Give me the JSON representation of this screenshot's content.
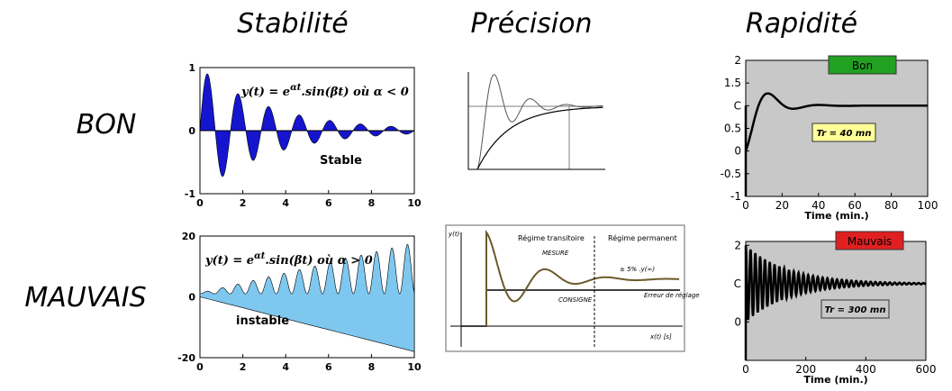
{
  "columns": [
    "Stabilité",
    "Précision",
    "Rapidité"
  ],
  "rows": [
    "BON",
    "MAUVAIS"
  ],
  "panels": {
    "stable": {
      "formula_lhs": "y(t) = e",
      "formula_exp": "αt",
      "formula_rhs": ".sin(βt)  où  α < 0",
      "label": "Stable",
      "xlim": [
        0,
        10
      ],
      "ylim": [
        -1,
        1
      ],
      "xticks": [
        0,
        2,
        4,
        6,
        8,
        10
      ],
      "yticks": [
        -1,
        0,
        1
      ]
    },
    "unstable": {
      "formula_lhs": "y(t) = e",
      "formula_exp": "αt",
      "formula_rhs": ".sin(βt)  où  α > 0",
      "label": "instable",
      "xlim": [
        0,
        10
      ],
      "ylim": [
        -20,
        20
      ],
      "xticks": [
        0,
        2,
        4,
        6,
        8,
        10
      ],
      "yticks": [
        -20,
        0,
        20
      ]
    },
    "precision_bad": {
      "transient": "Régime transitoire",
      "permanent": "Régime permanent",
      "measure": "MESURE",
      "setpoint": "CONSIGNE",
      "error": "Erreur de réglage",
      "band": "± 5% .y(∞)",
      "xlabel": "x(t) [s]",
      "ylabel": "y(t)"
    },
    "fast": {
      "badge": "Bon",
      "note": "Tr = 40 mn",
      "xlabel": "Time (min.)",
      "xlim": [
        0,
        100
      ],
      "ylim": [
        -1,
        2
      ],
      "xticks": [
        0,
        20,
        40,
        60,
        80,
        100
      ],
      "yticks": [
        -1,
        -0.5,
        0,
        0.5,
        {
          "value": 1,
          "label": "C"
        },
        1.5,
        2
      ]
    },
    "slow": {
      "badge": "Mauvais",
      "note": "Tr = 300 mn",
      "xlabel": "Time (min.)",
      "xlim": [
        0,
        600
      ],
      "ylim": [
        -1,
        2.1
      ],
      "xticks": [
        0,
        200,
        400,
        600
      ],
      "yticks": [
        0,
        {
          "value": 1,
          "label": "C"
        },
        2
      ]
    }
  }
}
